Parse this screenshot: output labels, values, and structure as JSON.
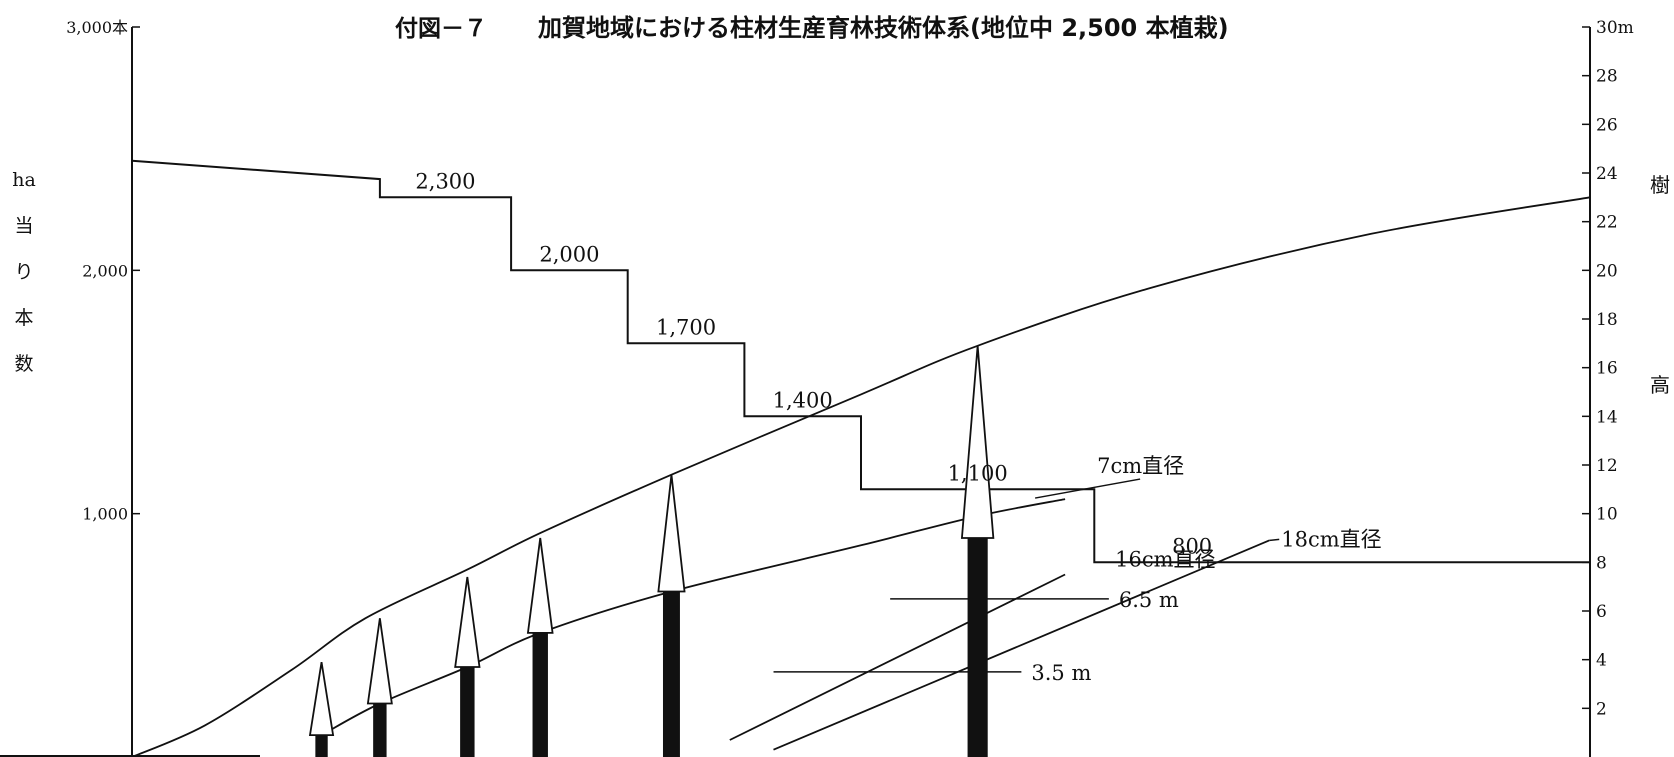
{
  "chart_data": {
    "type": "line",
    "title": {
      "prefix": "付図－７",
      "main": "加賀地域における柱材生産育林技術体系(地位中 2,500 本植栽)"
    },
    "y_left": {
      "label_chars": [
        "ha",
        "当",
        "り",
        "本",
        "数"
      ],
      "range": [
        0,
        3000
      ],
      "ticks": [
        {
          "value": 3000,
          "label": "3,000本"
        },
        {
          "value": 2000,
          "label": "2,000"
        },
        {
          "value": 1000,
          "label": "1,000"
        }
      ]
    },
    "y_right": {
      "label_chars": [
        "樹",
        "高"
      ],
      "range": [
        0,
        30
      ],
      "ticks": [
        {
          "value": 30,
          "label": "30m"
        },
        {
          "value": 28,
          "label": "28"
        },
        {
          "value": 26,
          "label": "26"
        },
        {
          "value": 24,
          "label": "24"
        },
        {
          "value": 22,
          "label": "22"
        },
        {
          "value": 20,
          "label": "20"
        },
        {
          "value": 18,
          "label": "18"
        },
        {
          "value": 16,
          "label": "16"
        },
        {
          "value": 14,
          "label": "14"
        },
        {
          "value": 12,
          "label": "12"
        },
        {
          "value": 10,
          "label": "10"
        },
        {
          "value": 8,
          "label": "8"
        },
        {
          "value": 6,
          "label": "6"
        },
        {
          "value": 4,
          "label": "4"
        },
        {
          "value": 2,
          "label": "2"
        }
      ]
    },
    "stand_density": {
      "initial": 2450,
      "steps": [
        {
          "value": 2300,
          "label": "2,300"
        },
        {
          "value": 2000,
          "label": "2,000"
        },
        {
          "value": 1700,
          "label": "1,700"
        },
        {
          "value": 1400,
          "label": "1,400"
        },
        {
          "value": 1100,
          "label": "1,100"
        },
        {
          "value": 800,
          "label": "800"
        }
      ]
    },
    "height_curve": [
      {
        "t": 0.0,
        "h": 0.0
      },
      {
        "t": 0.05,
        "h": 1.3
      },
      {
        "t": 0.11,
        "h": 3.6
      },
      {
        "t": 0.16,
        "h": 5.7
      },
      {
        "t": 0.23,
        "h": 7.7
      },
      {
        "t": 0.28,
        "h": 9.2
      },
      {
        "t": 0.37,
        "h": 11.6
      },
      {
        "t": 0.5,
        "h": 14.9
      },
      {
        "t": 0.58,
        "h": 16.9
      },
      {
        "t": 0.7,
        "h": 19.3
      },
      {
        "t": 0.85,
        "h": 21.5
      },
      {
        "t": 1.0,
        "h": 23.0
      }
    ],
    "diameter_7cm_curve": [
      {
        "t": 0.13,
        "h": 0.9
      },
      {
        "t": 0.17,
        "h": 2.2
      },
      {
        "t": 0.23,
        "h": 3.7
      },
      {
        "t": 0.28,
        "h": 5.1
      },
      {
        "t": 0.37,
        "h": 6.8
      },
      {
        "t": 0.5,
        "h": 8.7
      },
      {
        "t": 0.58,
        "h": 9.9
      },
      {
        "t": 0.64,
        "h": 10.6
      }
    ],
    "diameter_16cm_line": [
      {
        "t": 0.41,
        "h": 0.7
      },
      {
        "t": 0.64,
        "h": 7.5
      }
    ],
    "diameter_18cm_line": [
      {
        "t": 0.44,
        "h": 0.3
      },
      {
        "t": 0.78,
        "h": 8.9
      }
    ],
    "markers": [
      {
        "label": "6.5 m",
        "h": 6.5
      },
      {
        "label": "3.5 m",
        "h": 3.5
      }
    ],
    "curve_labels": {
      "d7": "7cm直径",
      "d16": "16cm直径",
      "d18": "18cm直径"
    },
    "trees": [
      {
        "t": 0.13,
        "top": 3.9,
        "crown_base": 0.9
      },
      {
        "t": 0.17,
        "top": 5.7,
        "crown_base": 2.2
      },
      {
        "t": 0.23,
        "top": 7.4,
        "crown_base": 3.7
      },
      {
        "t": 0.28,
        "top": 9.0,
        "crown_base": 5.1
      },
      {
        "t": 0.37,
        "top": 11.6,
        "crown_base": 6.8
      },
      {
        "t": 0.58,
        "top": 16.9,
        "crown_base": 9.0
      }
    ]
  }
}
